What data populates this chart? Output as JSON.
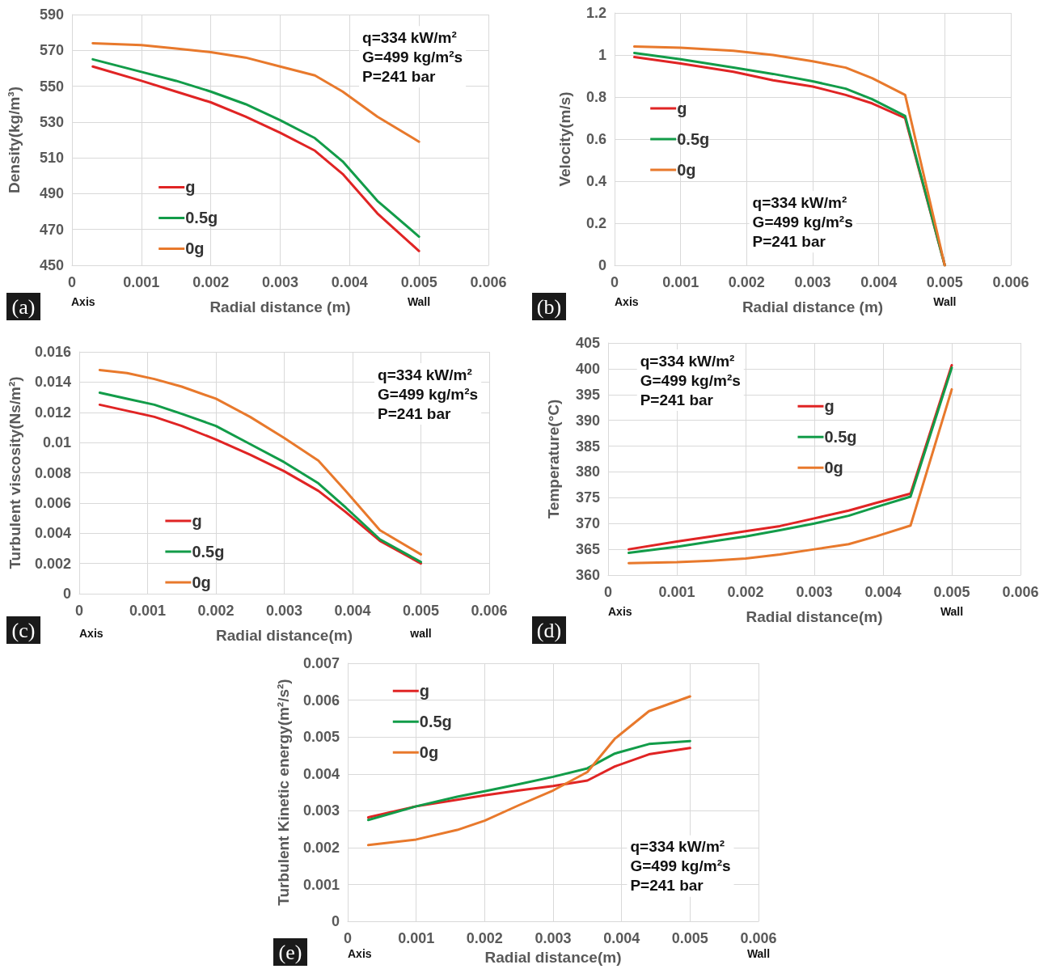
{
  "chart_data": [
    {
      "type": "line",
      "ylabel": "Density(kg/m³)",
      "xlabel": "Radial distance (m)",
      "xlim": [
        0,
        0.006
      ],
      "xticks": [
        0,
        0.001,
        0.002,
        0.003,
        0.004,
        0.005,
        0.006
      ],
      "ylim": [
        450,
        590
      ],
      "yticks": [
        450,
        470,
        490,
        510,
        530,
        550,
        570,
        590
      ],
      "grid": true,
      "legend": "bottom left",
      "marker": "none",
      "line_style": "solid",
      "annotations": [
        "(a)",
        "Axis",
        "Wall",
        "q=334 kW/m²\nG=499 kg/m²s\nP=241 bar"
      ],
      "x": [
        0.0003,
        0.001,
        0.0015,
        0.002,
        0.0025,
        0.003,
        0.0035,
        0.0039,
        0.0044,
        0.005
      ],
      "series": [
        {
          "name": "g",
          "color": "#e02424",
          "values": [
            561,
            553,
            547,
            541,
            533,
            524,
            514,
            501,
            479,
            458
          ]
        },
        {
          "name": "0.5g",
          "color": "#129c49",
          "values": [
            565,
            558,
            553,
            547,
            540,
            531,
            521,
            508,
            486,
            466
          ]
        },
        {
          "name": "0g",
          "color": "#e8792c",
          "values": [
            574,
            573,
            571,
            569,
            566,
            561,
            556,
            547,
            533,
            519
          ]
        }
      ]
    },
    {
      "type": "line",
      "ylabel": "Velocity(m/s)",
      "xlabel": "Radial distance (m)",
      "xlim": [
        0,
        0.006
      ],
      "xticks": [
        0,
        0.001,
        0.002,
        0.003,
        0.004,
        0.005,
        0.006
      ],
      "ylim": [
        0,
        1.2
      ],
      "yticks": [
        0,
        0.2,
        0.4,
        0.6,
        0.8,
        1,
        1.2
      ],
      "grid": true,
      "legend": "left",
      "marker": "none",
      "line_style": "solid",
      "annotations": [
        "(b)",
        "Axis",
        "Wall",
        "q=334 kW/m²\nG=499 kg/m²s\nP=241 bar"
      ],
      "x": [
        0.0003,
        0.001,
        0.0018,
        0.0024,
        0.003,
        0.0035,
        0.0039,
        0.0044,
        0.005
      ],
      "series": [
        {
          "name": "g",
          "color": "#e02424",
          "values": [
            0.99,
            0.96,
            0.92,
            0.88,
            0.85,
            0.81,
            0.77,
            0.7,
            0
          ]
        },
        {
          "name": "0.5g",
          "color": "#129c49",
          "values": [
            1.01,
            0.98,
            0.94,
            0.91,
            0.875,
            0.84,
            0.79,
            0.71,
            0
          ]
        },
        {
          "name": "0g",
          "color": "#e8792c",
          "values": [
            1.04,
            1.035,
            1.02,
            1.0,
            0.97,
            0.94,
            0.89,
            0.81,
            0
          ]
        }
      ]
    },
    {
      "type": "line",
      "ylabel": "Turbulent viscosity(Ns/m²)",
      "xlabel": "Radial distance(m)",
      "xlim": [
        0,
        0.006
      ],
      "xticks": [
        0,
        0.001,
        0.002,
        0.003,
        0.004,
        0.005,
        0.006
      ],
      "ylim": [
        0,
        0.016
      ],
      "yticks": [
        0,
        0.002,
        0.004,
        0.006,
        0.008,
        0.01,
        0.012,
        0.014,
        0.016
      ],
      "grid": true,
      "legend": "bottom left",
      "marker": "none",
      "line_style": "solid",
      "annotations": [
        "(c)",
        "Axis",
        "wall",
        "q=334 kW/m²\nG=499 kg/m²s\nP=241 bar"
      ],
      "x": [
        0.0003,
        0.0007,
        0.0011,
        0.0015,
        0.002,
        0.0025,
        0.003,
        0.0035,
        0.0039,
        0.0044,
        0.005
      ],
      "series": [
        {
          "name": "g",
          "color": "#e02424",
          "values": [
            0.0125,
            0.0121,
            0.0117,
            0.0111,
            0.0102,
            0.0092,
            0.0081,
            0.0068,
            0.0054,
            0.0035,
            0.002
          ]
        },
        {
          "name": "0.5g",
          "color": "#129c49",
          "values": [
            0.0133,
            0.0129,
            0.0125,
            0.0119,
            0.0111,
            0.0099,
            0.0087,
            0.0073,
            0.0057,
            0.0036,
            0.0021
          ]
        },
        {
          "name": "0g",
          "color": "#e8792c",
          "values": [
            0.0148,
            0.0146,
            0.0142,
            0.0137,
            0.0129,
            0.0117,
            0.0103,
            0.0088,
            0.0068,
            0.0042,
            0.0026
          ]
        }
      ]
    },
    {
      "type": "line",
      "ylabel": "Temperature(°C)",
      "xlabel": "Radial distance(m)",
      "xlim": [
        0,
        0.006
      ],
      "xticks": [
        0,
        0.001,
        0.002,
        0.003,
        0.004,
        0.005,
        0.006
      ],
      "ylim": [
        360,
        405
      ],
      "yticks": [
        360,
        365,
        370,
        375,
        380,
        385,
        390,
        395,
        400,
        405
      ],
      "grid": true,
      "legend": "top",
      "marker": "none",
      "line_style": "solid",
      "annotations": [
        "(d)",
        "Axis",
        "Wall",
        "q=334 kW/m²\nG=499 kg/m²s\nP=241 bar"
      ],
      "x": [
        0.0003,
        0.001,
        0.0015,
        0.002,
        0.0025,
        0.003,
        0.0035,
        0.0039,
        0.0044,
        0.005
      ],
      "series": [
        {
          "name": "g",
          "color": "#e02424",
          "values": [
            365,
            366.5,
            367.5,
            368.5,
            369.5,
            371,
            372.5,
            374,
            375.8,
            400.7
          ]
        },
        {
          "name": "0.5g",
          "color": "#129c49",
          "values": [
            364.3,
            365.5,
            366.5,
            367.5,
            368.7,
            370,
            371.5,
            373.2,
            375.2,
            400.2
          ]
        },
        {
          "name": "0g",
          "color": "#e8792c",
          "values": [
            362.3,
            362.5,
            362.8,
            363.2,
            364,
            365,
            366,
            367.5,
            369.6,
            396
          ]
        }
      ]
    },
    {
      "type": "line",
      "ylabel": "Turbulent Kinetic energy(m²/s²)",
      "xlabel": "Radial distance(m)",
      "xlim": [
        0,
        0.006
      ],
      "xticks": [
        0,
        0.001,
        0.002,
        0.003,
        0.004,
        0.005,
        0.006
      ],
      "ylim": [
        0,
        0.007
      ],
      "yticks": [
        0,
        0.001,
        0.002,
        0.003,
        0.004,
        0.005,
        0.006,
        0.007
      ],
      "grid": true,
      "legend": "top left",
      "marker": "none",
      "line_style": "solid",
      "annotations": [
        "(e)",
        "Axis",
        "Wall",
        "q=334 kW/m²\nG=499 kg/m²s\nP=241 bar"
      ],
      "x": [
        0.0003,
        0.001,
        0.0016,
        0.002,
        0.0025,
        0.003,
        0.0035,
        0.0039,
        0.0044,
        0.005
      ],
      "series": [
        {
          "name": "g",
          "color": "#e02424",
          "values": [
            0.00282,
            0.00312,
            0.0033,
            0.00342,
            0.00355,
            0.00367,
            0.00382,
            0.0042,
            0.00453,
            0.0047
          ]
        },
        {
          "name": "0.5g",
          "color": "#129c49",
          "values": [
            0.00275,
            0.00312,
            0.00338,
            0.00353,
            0.00372,
            0.00392,
            0.00415,
            0.00455,
            0.00481,
            0.00489
          ]
        },
        {
          "name": "0g",
          "color": "#e8792c",
          "values": [
            0.00207,
            0.00222,
            0.00248,
            0.00273,
            0.00315,
            0.00355,
            0.00405,
            0.00495,
            0.0057,
            0.0061
          ]
        }
      ]
    }
  ]
}
